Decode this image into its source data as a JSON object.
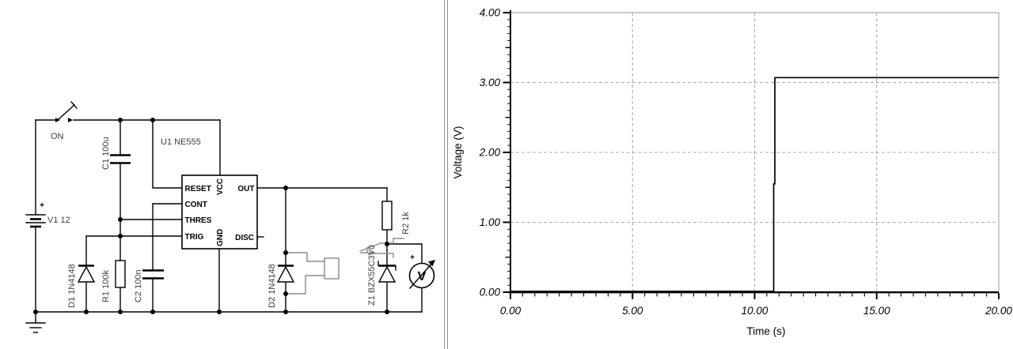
{
  "schematic": {
    "power_switch": {
      "label": "ON"
    },
    "battery": {
      "label": "V1 12",
      "plus": "+"
    },
    "c1": {
      "label": "C1 100u"
    },
    "u1": {
      "label": "U1 NE555",
      "pins": {
        "reset": "RESET",
        "cont": "CONT",
        "thres": "THRES",
        "trig": "TRIG",
        "vcc": "VCC",
        "gnd": "GND",
        "out": "OUT",
        "disc": "DISC"
      }
    },
    "d1": {
      "label": "D1 1N4148"
    },
    "r1": {
      "label": "R1 100k"
    },
    "c2": {
      "label": "C2 100n"
    },
    "d2": {
      "label": "D2 1N4148"
    },
    "relay": {
      "color": "#8c8c8c"
    },
    "z1": {
      "label": "Z1 BZX55C3V0"
    },
    "r2": {
      "label": "R2 1k"
    },
    "voltmeter": {
      "label": "V",
      "plus": "+"
    }
  },
  "chart_data": {
    "type": "line",
    "title": "",
    "xlabel": "Time (s)",
    "ylabel": "Voltage (V)",
    "xlim": [
      0,
      20
    ],
    "ylim": [
      0,
      4
    ],
    "x_ticks": [
      {
        "v": 0,
        "label": "0.00"
      },
      {
        "v": 5,
        "label": "5.00"
      },
      {
        "v": 10,
        "label": "10.00"
      },
      {
        "v": 15,
        "label": "15.00"
      },
      {
        "v": 20,
        "label": "20.00"
      }
    ],
    "y_ticks": [
      {
        "v": 0,
        "label": "0.00"
      },
      {
        "v": 1,
        "label": "1.00"
      },
      {
        "v": 2,
        "label": "2.00"
      },
      {
        "v": 3,
        "label": "3.00"
      },
      {
        "v": 4,
        "label": "4.00"
      }
    ],
    "x_major_step": 5,
    "x_minor_step": 0.5,
    "y_major_step": 1,
    "y_medium_step": 0.5,
    "y_minor_step": 0.1,
    "grid": {
      "dashed_majors": true,
      "color": "#acacac"
    },
    "legend": null,
    "series": [
      {
        "points": [
          [
            0,
            0
          ],
          [
            10.78,
            0
          ],
          [
            10.78,
            1.55
          ],
          [
            10.83,
            1.55
          ],
          [
            10.83,
            3.07
          ],
          [
            20,
            3.07
          ]
        ]
      }
    ]
  }
}
